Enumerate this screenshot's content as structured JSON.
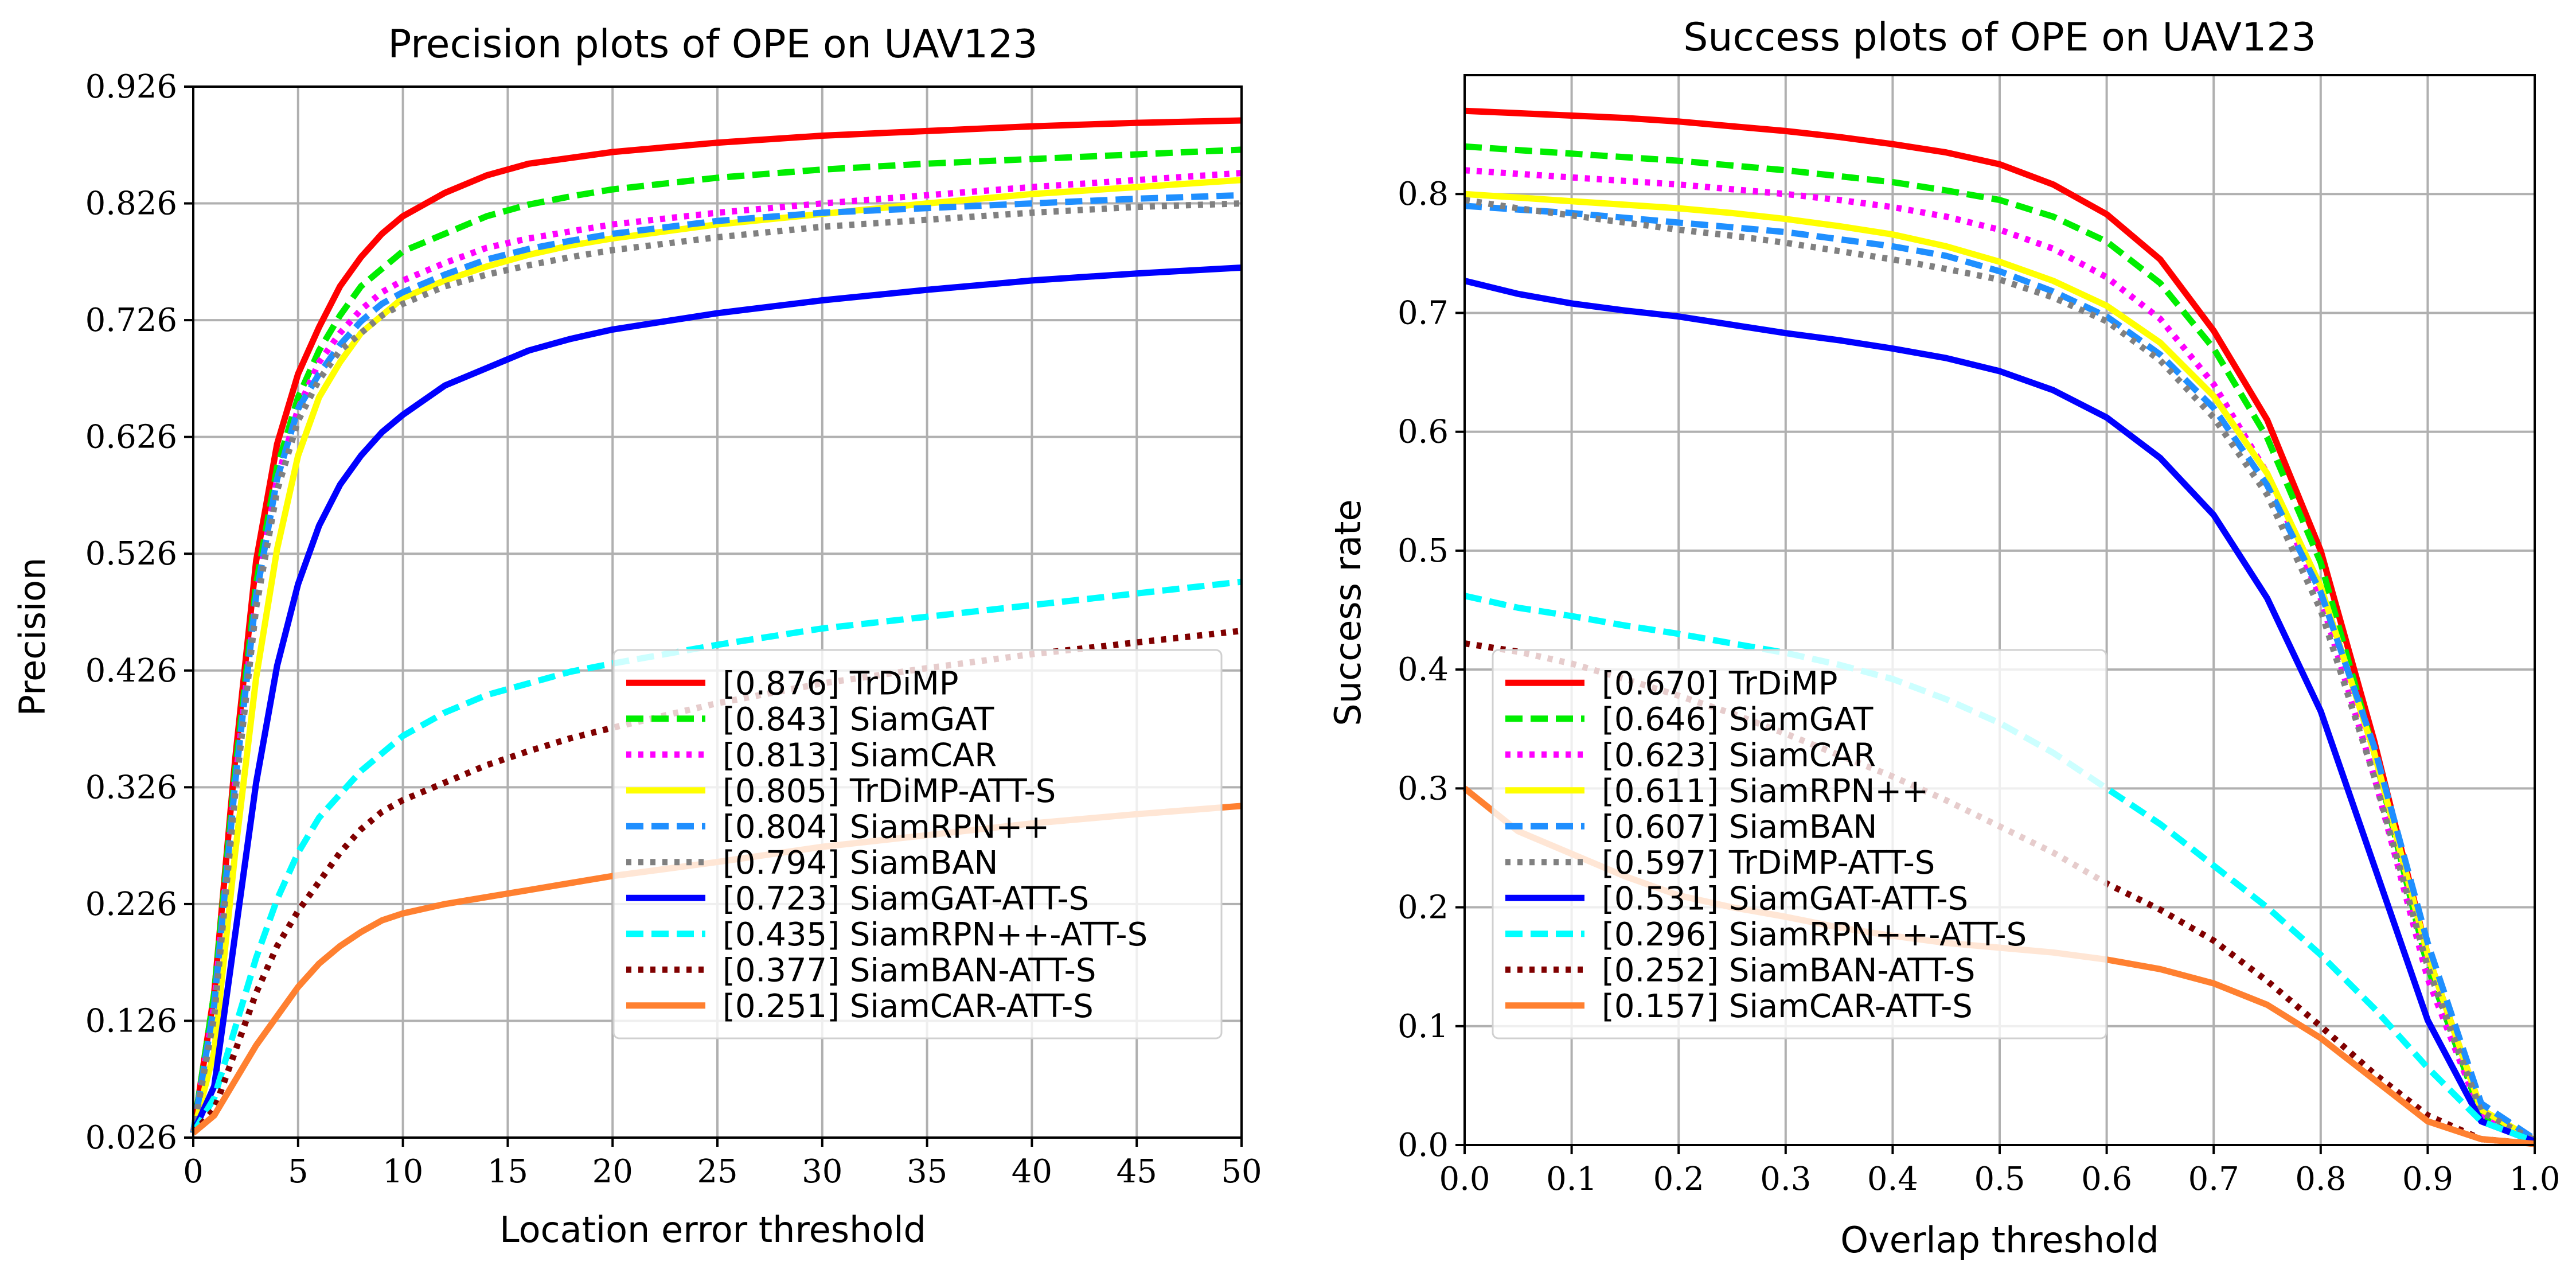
{
  "chart_data": [
    {
      "type": "line",
      "title": "Precision plots of OPE on UAV123",
      "xlabel": "Location error threshold",
      "ylabel": "Precision",
      "xlim": [
        0,
        50
      ],
      "ylim": [
        0.026,
        0.926
      ],
      "xticks": [
        0,
        5,
        10,
        15,
        20,
        25,
        30,
        35,
        40,
        45,
        50
      ],
      "yticks": [
        0.026,
        0.126,
        0.226,
        0.326,
        0.426,
        0.526,
        0.626,
        0.726,
        0.826,
        0.926
      ],
      "ytick_labels": [
        "0.026",
        "0.126",
        "0.226",
        "0.326",
        "0.426",
        "0.526",
        "0.626",
        "0.726",
        "0.826",
        "0.926"
      ],
      "grid": true,
      "legend_position": "lower-right",
      "x": [
        0,
        1,
        2,
        3,
        4,
        5,
        6,
        7,
        8,
        9,
        10,
        12,
        14,
        16,
        18,
        20,
        25,
        30,
        35,
        40,
        45,
        50
      ],
      "series": [
        {
          "name": "[0.876] TrDiMP",
          "color": "#ff0000",
          "style": "solid",
          "values": [
            0.03,
            0.15,
            0.35,
            0.52,
            0.62,
            0.68,
            0.72,
            0.755,
            0.78,
            0.8,
            0.815,
            0.835,
            0.85,
            0.86,
            0.865,
            0.87,
            0.878,
            0.884,
            0.888,
            0.892,
            0.895,
            0.897
          ]
        },
        {
          "name": "[0.843] SiamGAT",
          "color": "#00ee00",
          "style": "dashed",
          "values": [
            0.03,
            0.15,
            0.34,
            0.5,
            0.6,
            0.66,
            0.7,
            0.73,
            0.755,
            0.77,
            0.785,
            0.8,
            0.815,
            0.825,
            0.832,
            0.838,
            0.848,
            0.855,
            0.86,
            0.864,
            0.868,
            0.872
          ]
        },
        {
          "name": "[0.813] SiamCAR",
          "color": "#ff00ff",
          "style": "dotted",
          "values": [
            0.03,
            0.14,
            0.33,
            0.49,
            0.59,
            0.65,
            0.69,
            0.715,
            0.735,
            0.75,
            0.76,
            0.775,
            0.788,
            0.796,
            0.802,
            0.808,
            0.818,
            0.826,
            0.833,
            0.84,
            0.846,
            0.852
          ]
        },
        {
          "name": "[0.805] TrDiMP-ATT-S",
          "color": "#ffff00",
          "style": "solid",
          "values": [
            0.03,
            0.1,
            0.27,
            0.42,
            0.53,
            0.61,
            0.66,
            0.69,
            0.715,
            0.73,
            0.745,
            0.76,
            0.772,
            0.782,
            0.79,
            0.796,
            0.808,
            0.817,
            0.826,
            0.834,
            0.84,
            0.846
          ]
        },
        {
          "name": "[0.804] SiamRPN++",
          "color": "#1f8fff",
          "style": "dashed",
          "values": [
            0.03,
            0.14,
            0.33,
            0.49,
            0.59,
            0.65,
            0.68,
            0.705,
            0.725,
            0.74,
            0.75,
            0.765,
            0.778,
            0.787,
            0.794,
            0.8,
            0.811,
            0.818,
            0.822,
            0.826,
            0.83,
            0.833
          ]
        },
        {
          "name": "[0.794] SiamBAN",
          "color": "#808080",
          "style": "dotted",
          "values": [
            0.03,
            0.13,
            0.32,
            0.48,
            0.58,
            0.64,
            0.675,
            0.7,
            0.715,
            0.73,
            0.74,
            0.755,
            0.765,
            0.773,
            0.78,
            0.786,
            0.797,
            0.806,
            0.812,
            0.818,
            0.823,
            0.826
          ]
        },
        {
          "name": "[0.723] SiamGAT-ATT-S",
          "color": "#0000ff",
          "style": "solid",
          "values": [
            0.03,
            0.07,
            0.2,
            0.33,
            0.43,
            0.5,
            0.55,
            0.585,
            0.61,
            0.63,
            0.645,
            0.67,
            0.685,
            0.7,
            0.71,
            0.718,
            0.732,
            0.743,
            0.752,
            0.76,
            0.766,
            0.771
          ]
        },
        {
          "name": "[0.435] SiamRPN++-ATT-S",
          "color": "#00ffff",
          "style": "dashed",
          "values": [
            0.03,
            0.06,
            0.12,
            0.18,
            0.23,
            0.27,
            0.3,
            0.32,
            0.34,
            0.355,
            0.37,
            0.39,
            0.405,
            0.415,
            0.425,
            0.432,
            0.448,
            0.462,
            0.472,
            0.482,
            0.492,
            0.502
          ]
        },
        {
          "name": "[0.377] SiamBAN-ATT-S",
          "color": "#800000",
          "style": "dotted",
          "values": [
            0.03,
            0.05,
            0.1,
            0.15,
            0.19,
            0.22,
            0.245,
            0.27,
            0.29,
            0.305,
            0.315,
            0.33,
            0.345,
            0.357,
            0.368,
            0.377,
            0.398,
            0.415,
            0.428,
            0.44,
            0.45,
            0.46
          ]
        },
        {
          "name": "[0.251] SiamCAR-ATT-S",
          "color": "#ff8030",
          "style": "solid",
          "values": [
            0.03,
            0.045,
            0.075,
            0.105,
            0.13,
            0.155,
            0.175,
            0.19,
            0.202,
            0.212,
            0.218,
            0.226,
            0.232,
            0.238,
            0.244,
            0.25,
            0.262,
            0.275,
            0.285,
            0.295,
            0.303,
            0.31
          ]
        }
      ]
    },
    {
      "type": "line",
      "title": "Success plots of OPE on UAV123",
      "xlabel": "Overlap threshold",
      "ylabel": "Success rate",
      "xlim": [
        0,
        1
      ],
      "ylim": [
        0,
        0.9
      ],
      "xticks": [
        0,
        0.1,
        0.2,
        0.3,
        0.4,
        0.5,
        0.6,
        0.7,
        0.8,
        0.9,
        1.0
      ],
      "xtick_labels": [
        "0.0",
        "0.1",
        "0.2",
        "0.3",
        "0.4",
        "0.5",
        "0.6",
        "0.7",
        "0.8",
        "0.9",
        "1.0"
      ],
      "yticks": [
        0,
        0.1,
        0.2,
        0.3,
        0.4,
        0.5,
        0.6,
        0.7,
        0.8
      ],
      "ytick_labels": [
        "0.0",
        "0.1",
        "0.2",
        "0.3",
        "0.4",
        "0.5",
        "0.6",
        "0.7",
        "0.8"
      ],
      "grid": true,
      "legend_position": "lower-left",
      "x": [
        0,
        0.05,
        0.1,
        0.15,
        0.2,
        0.25,
        0.3,
        0.35,
        0.4,
        0.45,
        0.5,
        0.55,
        0.6,
        0.65,
        0.7,
        0.75,
        0.8,
        0.85,
        0.9,
        0.95,
        1.0
      ],
      "series": [
        {
          "name": "[0.670] TrDiMP",
          "color": "#ff0000",
          "style": "solid",
          "values": [
            0.87,
            0.868,
            0.866,
            0.864,
            0.861,
            0.857,
            0.853,
            0.848,
            0.842,
            0.835,
            0.825,
            0.808,
            0.783,
            0.745,
            0.685,
            0.61,
            0.5,
            0.34,
            0.16,
            0.03,
            0.003
          ]
        },
        {
          "name": "[0.646] SiamGAT",
          "color": "#00ee00",
          "style": "dashed",
          "values": [
            0.84,
            0.837,
            0.834,
            0.831,
            0.828,
            0.824,
            0.82,
            0.815,
            0.81,
            0.803,
            0.795,
            0.781,
            0.76,
            0.725,
            0.67,
            0.595,
            0.49,
            0.33,
            0.15,
            0.025,
            0.003
          ]
        },
        {
          "name": "[0.623] SiamCAR",
          "color": "#ff00ff",
          "style": "dotted",
          "values": [
            0.82,
            0.817,
            0.814,
            0.811,
            0.808,
            0.804,
            0.8,
            0.795,
            0.789,
            0.781,
            0.77,
            0.754,
            0.73,
            0.695,
            0.64,
            0.565,
            0.46,
            0.31,
            0.14,
            0.025,
            0.003
          ]
        },
        {
          "name": "[0.611] SiamRPN++",
          "color": "#ffff00",
          "style": "solid",
          "values": [
            0.8,
            0.797,
            0.794,
            0.791,
            0.788,
            0.784,
            0.779,
            0.773,
            0.766,
            0.756,
            0.743,
            0.727,
            0.706,
            0.675,
            0.63,
            0.565,
            0.47,
            0.33,
            0.16,
            0.03,
            0.004
          ]
        },
        {
          "name": "[0.607] SiamBAN",
          "color": "#1f8fff",
          "style": "dashed",
          "values": [
            0.79,
            0.787,
            0.784,
            0.78,
            0.776,
            0.772,
            0.768,
            0.762,
            0.756,
            0.748,
            0.735,
            0.718,
            0.697,
            0.665,
            0.62,
            0.555,
            0.465,
            0.335,
            0.17,
            0.035,
            0.005
          ]
        },
        {
          "name": "[0.597] TrDiMP-ATT-S",
          "color": "#808080",
          "style": "dotted",
          "values": [
            0.795,
            0.788,
            0.782,
            0.776,
            0.77,
            0.765,
            0.759,
            0.752,
            0.745,
            0.737,
            0.728,
            0.713,
            0.693,
            0.66,
            0.612,
            0.547,
            0.45,
            0.31,
            0.15,
            0.028,
            0.004
          ]
        },
        {
          "name": "[0.531] SiamGAT-ATT-S",
          "color": "#0000ff",
          "style": "solid",
          "values": [
            0.727,
            0.716,
            0.708,
            0.702,
            0.697,
            0.69,
            0.683,
            0.677,
            0.67,
            0.662,
            0.651,
            0.635,
            0.612,
            0.578,
            0.53,
            0.46,
            0.365,
            0.235,
            0.105,
            0.02,
            0.003
          ]
        },
        {
          "name": "[0.296] SiamRPN++-ATT-S",
          "color": "#00ffff",
          "style": "dashed",
          "values": [
            0.462,
            0.452,
            0.445,
            0.437,
            0.43,
            0.422,
            0.414,
            0.404,
            0.392,
            0.375,
            0.355,
            0.33,
            0.3,
            0.27,
            0.235,
            0.2,
            0.16,
            0.115,
            0.065,
            0.02,
            0.003
          ]
        },
        {
          "name": "[0.252] SiamBAN-ATT-S",
          "color": "#800000",
          "style": "dotted",
          "values": [
            0.422,
            0.415,
            0.405,
            0.392,
            0.378,
            0.363,
            0.346,
            0.328,
            0.31,
            0.29,
            0.268,
            0.246,
            0.22,
            0.198,
            0.172,
            0.138,
            0.1,
            0.06,
            0.025,
            0.005,
            0.001
          ]
        },
        {
          "name": "[0.157] SiamCAR-ATT-S",
          "color": "#ff8030",
          "style": "solid",
          "values": [
            0.3,
            0.264,
            0.245,
            0.226,
            0.21,
            0.2,
            0.192,
            0.183,
            0.176,
            0.17,
            0.166,
            0.162,
            0.156,
            0.148,
            0.136,
            0.118,
            0.09,
            0.055,
            0.02,
            0.005,
            0.001
          ]
        }
      ]
    }
  ]
}
